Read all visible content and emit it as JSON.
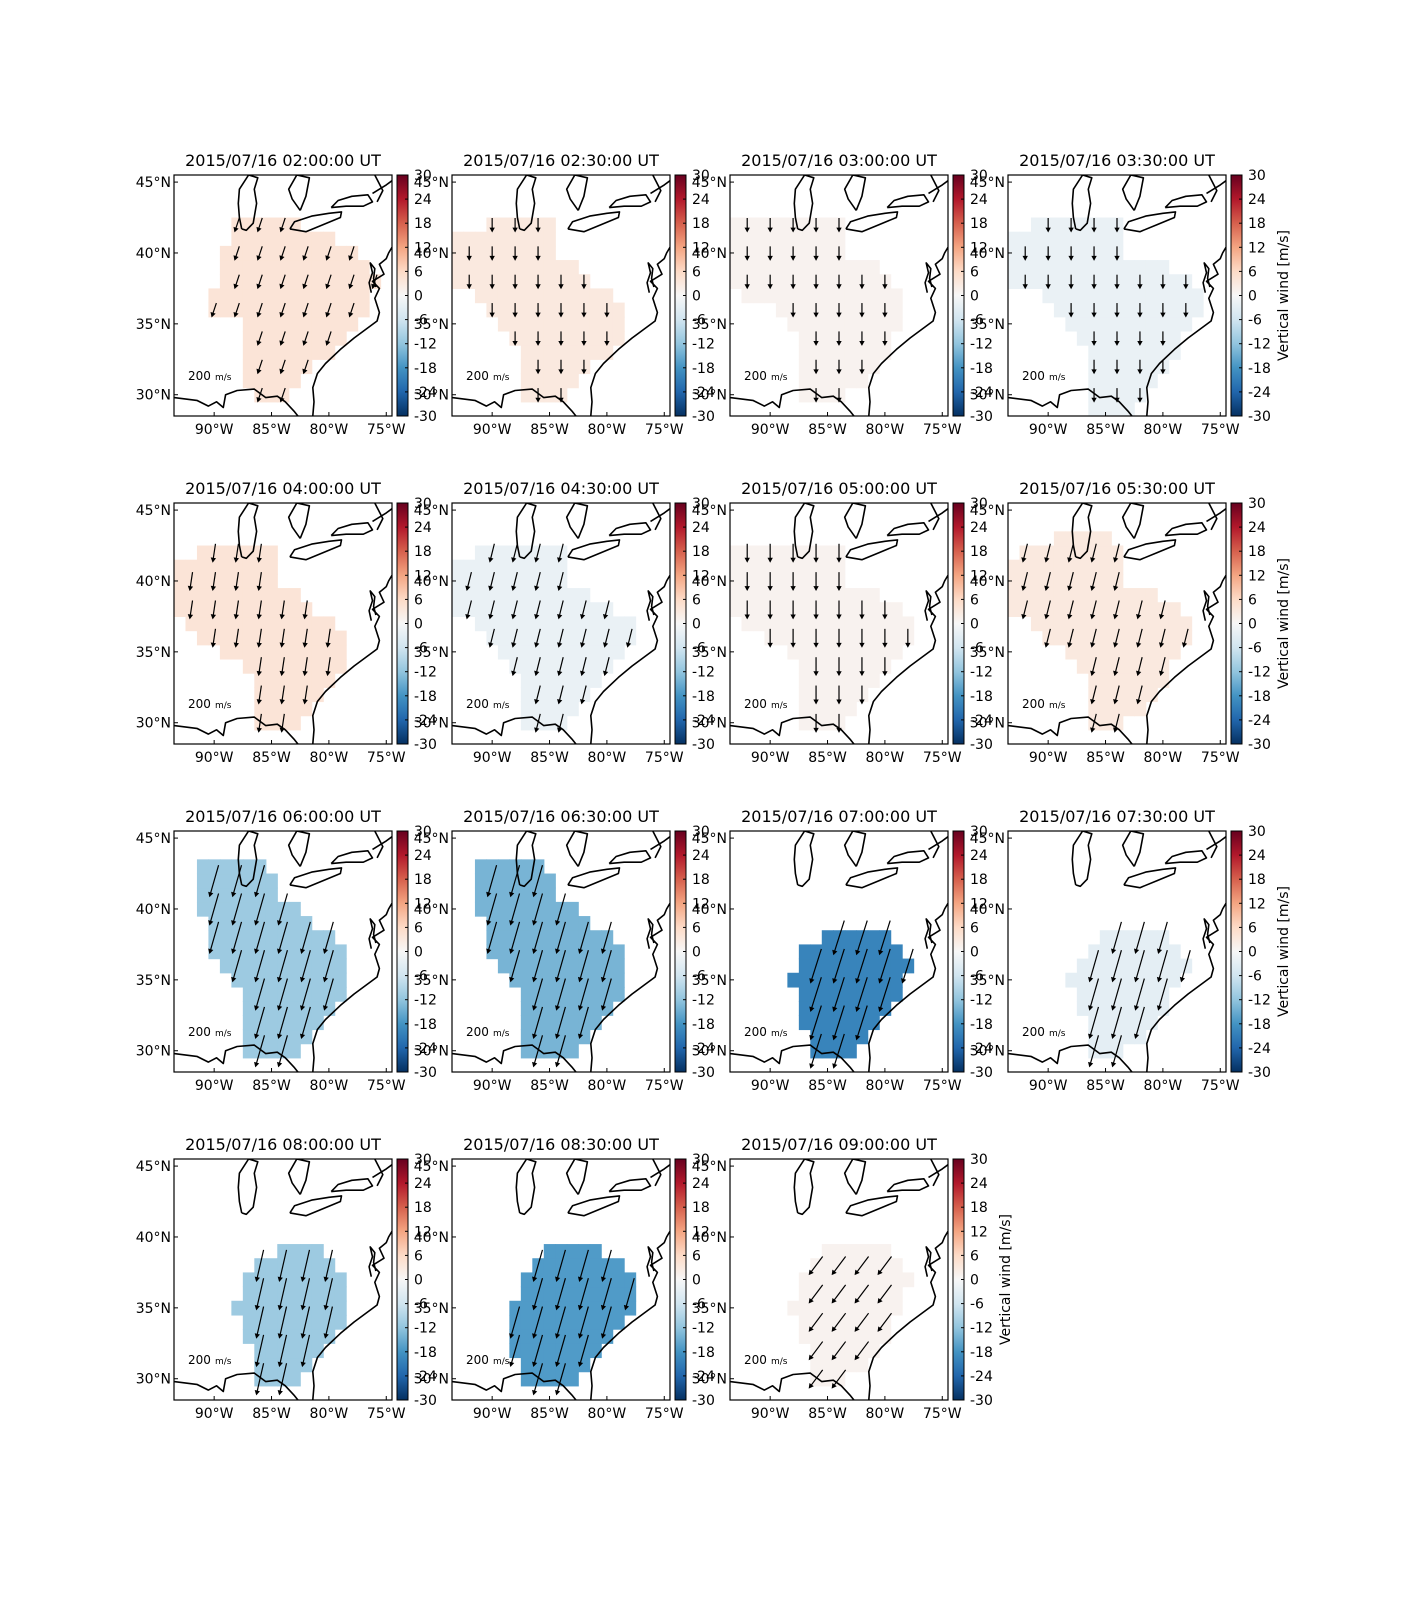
{
  "figure": {
    "colorbar_label": "Vertical wind [m/s]",
    "colorbar_ticks": [
      "30",
      "24",
      "18",
      "12",
      "6",
      "0",
      "-6",
      "-12",
      "-18",
      "-24",
      "-30"
    ],
    "colorbar_range": [
      -30,
      30
    ],
    "colormap": [
      "#053061",
      "#2166ac",
      "#4393c3",
      "#92c5de",
      "#d1e5f0",
      "#f7f7f7",
      "#fddbc7",
      "#f4a582",
      "#d6604d",
      "#b2182b",
      "#67001f"
    ],
    "lon_ticks": [
      "90°W",
      "85°W",
      "80°W",
      "75°W"
    ],
    "lat_ticks": [
      "45°N",
      "40°N",
      "35°N",
      "30°N"
    ],
    "lon_range": [
      -93.5,
      -74.5
    ],
    "lat_range": [
      28.5,
      45.5
    ],
    "scale_label": "200",
    "scale_units": "m/s",
    "coastline_color": "#000000",
    "arrow_color": "#000000"
  },
  "panels": [
    {
      "title": "2015/07/16 02:00:00 UT",
      "w": 4,
      "u": -0.5,
      "v": -1.5,
      "region": [
        [
          -88,
          42.5
        ],
        [
          -84,
          42.5
        ],
        [
          -79,
          41
        ],
        [
          -75.5,
          38
        ],
        [
          -78,
          34.5
        ],
        [
          -81,
          32
        ],
        [
          -83.5,
          29.5
        ],
        [
          -86,
          29.5
        ],
        [
          -87,
          31
        ],
        [
          -87,
          35
        ],
        [
          -90,
          36
        ],
        [
          -90,
          37
        ],
        [
          -89,
          40
        ],
        [
          -88,
          42.5
        ]
      ]
    },
    {
      "title": "2015/07/16 02:30:00 UT",
      "w": 3,
      "u": 0,
      "v": -1.5,
      "region": [
        [
          -93.5,
          41.5
        ],
        [
          -90,
          42
        ],
        [
          -87,
          43
        ],
        [
          -84,
          43
        ],
        [
          -84,
          40
        ],
        [
          -81,
          38
        ],
        [
          -78,
          36
        ],
        [
          -78,
          34
        ],
        [
          -81,
          32
        ],
        [
          -84,
          29.5
        ],
        [
          -87,
          29.5
        ],
        [
          -87,
          33
        ],
        [
          -89,
          35
        ],
        [
          -91,
          37
        ],
        [
          -93.5,
          38
        ],
        [
          -93.5,
          41.5
        ]
      ]
    },
    {
      "title": "2015/07/16 03:00:00 UT",
      "w": 1,
      "u": 0,
      "v": -1.5,
      "region": [
        [
          -93.5,
          42
        ],
        [
          -88,
          43
        ],
        [
          -84,
          43
        ],
        [
          -83,
          40
        ],
        [
          -80,
          39
        ],
        [
          -78,
          37
        ],
        [
          -79,
          34
        ],
        [
          -81,
          31
        ],
        [
          -84,
          29.5
        ],
        [
          -87,
          29.5
        ],
        [
          -87,
          33
        ],
        [
          -89,
          36
        ],
        [
          -92,
          37
        ],
        [
          -93.5,
          38
        ],
        [
          -93.5,
          42
        ]
      ]
    },
    {
      "title": "2015/07/16 03:30:00 UT",
      "w": -2,
      "u": 0,
      "v": -1.5,
      "region": [
        [
          -93.5,
          41.5
        ],
        [
          -88,
          43
        ],
        [
          -84,
          43
        ],
        [
          -83,
          40
        ],
        [
          -79,
          39
        ],
        [
          -76,
          36.5
        ],
        [
          -78,
          34
        ],
        [
          -80,
          31
        ],
        [
          -82,
          29
        ],
        [
          -86,
          29
        ],
        [
          -86,
          32
        ],
        [
          -88,
          35
        ],
        [
          -90,
          37
        ],
        [
          -93.5,
          38
        ],
        [
          -93.5,
          41.5
        ]
      ]
    },
    {
      "title": "2015/07/16 04:00:00 UT",
      "w": 4,
      "u": -0.3,
      "v": -2,
      "region": [
        [
          -93.5,
          41.5
        ],
        [
          -90,
          42.5
        ],
        [
          -87,
          43
        ],
        [
          -85,
          43
        ],
        [
          -84,
          40
        ],
        [
          -81,
          38
        ],
        [
          -78,
          36
        ],
        [
          -79,
          33
        ],
        [
          -81,
          31
        ],
        [
          -83,
          29.5
        ],
        [
          -86,
          29.5
        ],
        [
          -86,
          33
        ],
        [
          -88,
          34.5
        ],
        [
          -91,
          36
        ],
        [
          -93.5,
          38
        ],
        [
          -93.5,
          41.5
        ]
      ]
    },
    {
      "title": "2015/07/16 04:30:00 UT",
      "w": -2,
      "u": -0.5,
      "v": -2,
      "region": [
        [
          -93.5,
          41.5
        ],
        [
          -90,
          42.5
        ],
        [
          -87,
          43
        ],
        [
          -84,
          43
        ],
        [
          -83,
          40
        ],
        [
          -80,
          38.5
        ],
        [
          -77,
          36.5
        ],
        [
          -79,
          34
        ],
        [
          -81,
          32
        ],
        [
          -84,
          29.5
        ],
        [
          -87,
          29.5
        ],
        [
          -87,
          33
        ],
        [
          -89,
          35
        ],
        [
          -91,
          36.5
        ],
        [
          -93.5,
          38
        ],
        [
          -93.5,
          41.5
        ]
      ]
    },
    {
      "title": "2015/07/16 05:00:00 UT",
      "w": 1,
      "u": 0,
      "v": -2,
      "region": [
        [
          -93.5,
          42
        ],
        [
          -88,
          43
        ],
        [
          -84,
          43
        ],
        [
          -83,
          40
        ],
        [
          -80,
          39
        ],
        [
          -77,
          37
        ],
        [
          -79,
          34
        ],
        [
          -81,
          32
        ],
        [
          -84,
          29.5
        ],
        [
          -87,
          29.5
        ],
        [
          -87,
          33
        ],
        [
          -89,
          35.5
        ],
        [
          -92,
          37
        ],
        [
          -93.5,
          38
        ],
        [
          -93.5,
          42
        ]
      ]
    },
    {
      "title": "2015/07/16 05:30:00 UT",
      "w": 3,
      "u": -0.5,
      "v": -2,
      "region": [
        [
          -93.5,
          41.5
        ],
        [
          -89,
          43
        ],
        [
          -86,
          43.5
        ],
        [
          -84,
          43
        ],
        [
          -83,
          40
        ],
        [
          -80,
          39
        ],
        [
          -77,
          37
        ],
        [
          -79,
          34
        ],
        [
          -81,
          31.5
        ],
        [
          -84,
          29.5
        ],
        [
          -86,
          29.5
        ],
        [
          -86,
          33
        ],
        [
          -88,
          35
        ],
        [
          -91,
          36.5
        ],
        [
          -93.5,
          38
        ],
        [
          -93.5,
          41.5
        ]
      ]
    },
    {
      "title": "2015/07/16 06:00:00 UT",
      "w": -11,
      "u": -1,
      "v": -3.5,
      "region": [
        [
          -91,
          43
        ],
        [
          -88,
          44
        ],
        [
          -85,
          43
        ],
        [
          -84,
          41
        ],
        [
          -81,
          39
        ],
        [
          -78,
          36.5
        ],
        [
          -79,
          33.5
        ],
        [
          -81,
          31.5
        ],
        [
          -83,
          29.5
        ],
        [
          -87,
          29.5
        ],
        [
          -87,
          33
        ],
        [
          -88,
          35
        ],
        [
          -90,
          36.5
        ],
        [
          -91,
          40
        ],
        [
          -91,
          43
        ]
      ]
    },
    {
      "title": "2015/07/16 06:30:00 UT",
      "w": -14,
      "u": -1,
      "v": -3.5,
      "region": [
        [
          -91,
          43
        ],
        [
          -88,
          44
        ],
        [
          -85,
          43
        ],
        [
          -84,
          41
        ],
        [
          -81,
          39
        ],
        [
          -78,
          36.5
        ],
        [
          -79,
          33.5
        ],
        [
          -81,
          31.5
        ],
        [
          -83,
          29.5
        ],
        [
          -87,
          29.5
        ],
        [
          -87,
          33
        ],
        [
          -88,
          35
        ],
        [
          -90,
          36.5
        ],
        [
          -91,
          40
        ],
        [
          -91,
          43
        ]
      ]
    },
    {
      "title": "2015/07/16 07:00:00 UT",
      "w": -20,
      "u": -1.2,
      "v": -3.8,
      "region": [
        [
          -84.5,
          39
        ],
        [
          -80,
          39
        ],
        [
          -77.5,
          36.5
        ],
        [
          -78.5,
          34
        ],
        [
          -81,
          31
        ],
        [
          -83,
          29.5
        ],
        [
          -86,
          29.5
        ],
        [
          -87,
          32
        ],
        [
          -88,
          35
        ],
        [
          -87,
          37
        ],
        [
          -84.5,
          39
        ]
      ]
    },
    {
      "title": "2015/07/16 07:30:00 UT",
      "w": -3,
      "u": -1,
      "v": -3.5,
      "region": [
        [
          -84,
          39
        ],
        [
          -80,
          39
        ],
        [
          -77.5,
          36.5
        ],
        [
          -79,
          34
        ],
        [
          -81,
          31
        ],
        [
          -84,
          29.5
        ],
        [
          -86,
          30
        ],
        [
          -87,
          33
        ],
        [
          -88,
          35
        ],
        [
          -86,
          37
        ],
        [
          -84,
          39
        ]
      ]
    },
    {
      "title": "2015/07/16 08:00:00 UT",
      "w": -11,
      "u": -0.8,
      "v": -3.5,
      "region": [
        [
          -84,
          39.5
        ],
        [
          -81,
          39.5
        ],
        [
          -78,
          37
        ],
        [
          -78,
          34.5
        ],
        [
          -81,
          31.5
        ],
        [
          -83,
          29.5
        ],
        [
          -86,
          29.5
        ],
        [
          -87,
          33
        ],
        [
          -88,
          35
        ],
        [
          -87,
          37.5
        ],
        [
          -84,
          39.5
        ]
      ]
    },
    {
      "title": "2015/07/16 08:30:00 UT",
      "w": -17,
      "u": -1,
      "v": -3.5,
      "region": [
        [
          -85,
          39.5
        ],
        [
          -81,
          39.5
        ],
        [
          -77,
          37
        ],
        [
          -78,
          34
        ],
        [
          -81,
          31
        ],
        [
          -83,
          29.5
        ],
        [
          -87,
          29.5
        ],
        [
          -88,
          32
        ],
        [
          -88.5,
          35
        ],
        [
          -87,
          37.5
        ],
        [
          -85,
          39.5
        ]
      ]
    },
    {
      "title": "2015/07/16 09:00:00 UT",
      "w": 1,
      "u": -1.5,
      "v": -2,
      "region": [
        [
          -85,
          39.5
        ],
        [
          -80,
          39.5
        ],
        [
          -77.5,
          37
        ],
        [
          -79,
          34
        ],
        [
          -81,
          31.5
        ],
        [
          -84,
          29.5
        ],
        [
          -86,
          30
        ],
        [
          -87,
          33
        ],
        [
          -88,
          35
        ],
        [
          -87,
          37.5
        ],
        [
          -85,
          39.5
        ]
      ]
    }
  ]
}
